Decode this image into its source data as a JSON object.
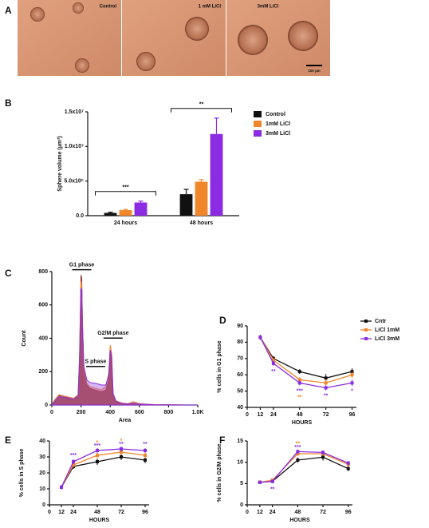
{
  "panel_labels": [
    "A",
    "B",
    "C",
    "D",
    "E",
    "F"
  ],
  "panel_a": {
    "labels": [
      "Control",
      "1 mM LiCl",
      "3mM LiCl"
    ],
    "scale_bar": "100 µm"
  },
  "chart_data": [
    {
      "type": "bar",
      "ylabel": "Sphere volume (µm³)",
      "categories": [
        "24 hours",
        "48 hours"
      ],
      "series": [
        {
          "name": "Control",
          "color": "#111111",
          "values": [
            400000,
            3100000
          ],
          "errors": [
            100000,
            700000
          ]
        },
        {
          "name": "1mM LiCl",
          "color": "#f0862a",
          "values": [
            800000,
            4900000
          ],
          "errors": [
            100000,
            300000
          ]
        },
        {
          "name": "3mM LiCl",
          "color": "#8b2be2",
          "values": [
            1900000,
            11800000
          ],
          "errors": [
            200000,
            2300000
          ]
        }
      ],
      "ylim": [
        0,
        15000000
      ],
      "yticks": [
        {
          "value": 0,
          "label": "0.0"
        },
        {
          "value": 5000000,
          "label": "5.0x10⁶"
        },
        {
          "value": 10000000,
          "label": "1.0x10⁷"
        },
        {
          "value": 15000000,
          "label": "1.5x10⁷"
        }
      ],
      "annotations": [
        {
          "text": "***",
          "category": 0
        },
        {
          "text": "**",
          "category": 1
        }
      ]
    },
    {
      "type": "area",
      "xlabel": "Area",
      "ylabel": "Count",
      "x": [
        0,
        20,
        50,
        100,
        150,
        180,
        190,
        200,
        205,
        210,
        220,
        240,
        260,
        300,
        340,
        370,
        390,
        400,
        410,
        420,
        440,
        480,
        520,
        560,
        600,
        700,
        800,
        900,
        1000
      ],
      "series": [
        {
          "color": "#8a3b2a",
          "values": [
            0,
            30,
            60,
            50,
            40,
            60,
            300,
            780,
            760,
            500,
            200,
            120,
            100,
            90,
            80,
            90,
            150,
            320,
            280,
            60,
            20,
            10,
            5,
            10,
            5,
            2,
            1,
            0,
            0
          ]
        },
        {
          "color": "#f0862a",
          "values": [
            0,
            25,
            55,
            50,
            40,
            60,
            280,
            740,
            720,
            480,
            210,
            130,
            110,
            100,
            90,
            110,
            190,
            360,
            310,
            70,
            25,
            12,
            8,
            20,
            8,
            3,
            1,
            0,
            0
          ]
        },
        {
          "color": "#8b2be2",
          "values": [
            0,
            20,
            50,
            45,
            35,
            55,
            260,
            700,
            690,
            460,
            230,
            150,
            135,
            130,
            120,
            120,
            180,
            330,
            290,
            65,
            22,
            10,
            6,
            12,
            6,
            2,
            1,
            0,
            0
          ]
        }
      ],
      "xlim": [
        0,
        1000
      ],
      "xticks": [
        0,
        200,
        400,
        600,
        800,
        {
          "value": 1000,
          "label": "1.0K"
        }
      ],
      "ylim": [
        0,
        800
      ],
      "yticks": [
        0,
        200,
        400,
        600,
        800
      ],
      "annotations": [
        {
          "text": "G1 phase",
          "x": 205,
          "y": 840
        },
        {
          "text": "S phase",
          "x": 300,
          "y": 260
        },
        {
          "text": "G2/M phase",
          "x": 420,
          "y": 430
        }
      ]
    },
    {
      "type": "line",
      "xlabel": "HOURS",
      "ylabel": "% cells in G1 phase",
      "x": [
        12,
        24,
        48,
        72,
        96
      ],
      "series": [
        {
          "name": "Cntr",
          "color": "#111111",
          "values": [
            83,
            70,
            62,
            58,
            62
          ],
          "errors": [
            1.5,
            1.5,
            1.5,
            2.5,
            2
          ]
        },
        {
          "name": "LiCl 1mM",
          "color": "#f0862a",
          "values": [
            83,
            69,
            57,
            55,
            60
          ],
          "errors": [
            1.5,
            1.5,
            1.5,
            2,
            2
          ]
        },
        {
          "name": "LiCl 3mM",
          "color": "#8b2be2",
          "values": [
            83,
            67,
            55,
            52,
            55
          ],
          "errors": [
            1.5,
            1.5,
            1.5,
            1.5,
            2
          ]
        }
      ],
      "xlim": [
        0,
        100
      ],
      "xticks": [
        0,
        12,
        24,
        48,
        72,
        96
      ],
      "ylim": [
        40,
        90
      ],
      "yticks": [
        40,
        50,
        60,
        70,
        80,
        90
      ],
      "annotations": [
        {
          "text": "**",
          "x": 24,
          "y": 62,
          "color": "#8b2be2"
        },
        {
          "text": "***",
          "x": 48,
          "y": 50,
          "color": "#8b2be2"
        },
        {
          "text": "**",
          "x": 48,
          "y": 46,
          "color": "#f0862a"
        },
        {
          "text": "**",
          "x": 72,
          "y": 47,
          "color": "#8b2be2"
        },
        {
          "text": "*",
          "x": 96,
          "y": 50,
          "color": "#8b2be2"
        }
      ]
    },
    {
      "type": "line",
      "xlabel": "HOURS",
      "ylabel": "% cells in S phase",
      "x": [
        12,
        24,
        48,
        72,
        96
      ],
      "series": [
        {
          "color": "#111111",
          "values": [
            11,
            24,
            27,
            30,
            28
          ],
          "errors": [
            1.5,
            1.5,
            2,
            2,
            2
          ]
        },
        {
          "color": "#f0862a",
          "values": [
            11,
            25,
            31,
            33,
            31
          ],
          "errors": [
            1.5,
            1.5,
            1.5,
            1.5,
            1.5
          ]
        },
        {
          "color": "#8b2be2",
          "values": [
            11,
            27,
            34,
            35,
            34
          ],
          "errors": [
            1.5,
            1.5,
            1.5,
            1.5,
            1.5
          ]
        }
      ],
      "xlim": [
        0,
        100
      ],
      "xticks": [
        0,
        12,
        24,
        48,
        72,
        96
      ],
      "ylim": [
        0,
        40
      ],
      "yticks": [
        0,
        10,
        20,
        30,
        40
      ],
      "annotations": [
        {
          "text": "***",
          "x": 24,
          "y": 31,
          "color": "#8b2be2"
        },
        {
          "text": "*",
          "x": 48,
          "y": 39,
          "color": "#f0862a"
        },
        {
          "text": "***",
          "x": 48,
          "y": 37,
          "color": "#8b2be2"
        },
        {
          "text": "*",
          "x": 72,
          "y": 40,
          "color": "#f0862a"
        },
        {
          "text": "**",
          "x": 72,
          "y": 38,
          "color": "#8b2be2"
        },
        {
          "text": "**",
          "x": 96,
          "y": 38,
          "color": "#8b2be2"
        }
      ]
    },
    {
      "type": "line",
      "xlabel": "HOURS",
      "ylabel": "% cells in G2/M phase",
      "x": [
        12,
        24,
        48,
        72,
        96
      ],
      "series": [
        {
          "color": "#111111",
          "values": [
            5.3,
            5.5,
            10.5,
            11.2,
            8.5
          ],
          "errors": [
            0.4,
            0.4,
            0.6,
            0.8,
            0.6
          ]
        },
        {
          "color": "#f0862a",
          "values": [
            5.3,
            5.8,
            12,
            12,
            9.5
          ],
          "errors": [
            0.4,
            0.4,
            0.5,
            0.5,
            0.5
          ]
        },
        {
          "color": "#8b2be2",
          "values": [
            5.3,
            5.5,
            12.5,
            12.3,
            9.8
          ],
          "errors": [
            0.4,
            0.4,
            0.5,
            0.5,
            0.5
          ]
        }
      ],
      "xlim": [
        0,
        100
      ],
      "xticks": [
        0,
        12,
        24,
        48,
        72,
        96
      ],
      "ylim": [
        0,
        15
      ],
      "yticks": [
        0,
        5,
        10,
        15
      ],
      "annotations": [
        {
          "text": "**",
          "x": 48,
          "y": 14.3,
          "color": "#f0862a"
        },
        {
          "text": "***",
          "x": 48,
          "y": 13.5,
          "color": "#8b2be2"
        },
        {
          "text": "**",
          "x": 24,
          "y": 3.6,
          "color": "#8b2be2"
        }
      ]
    }
  ]
}
